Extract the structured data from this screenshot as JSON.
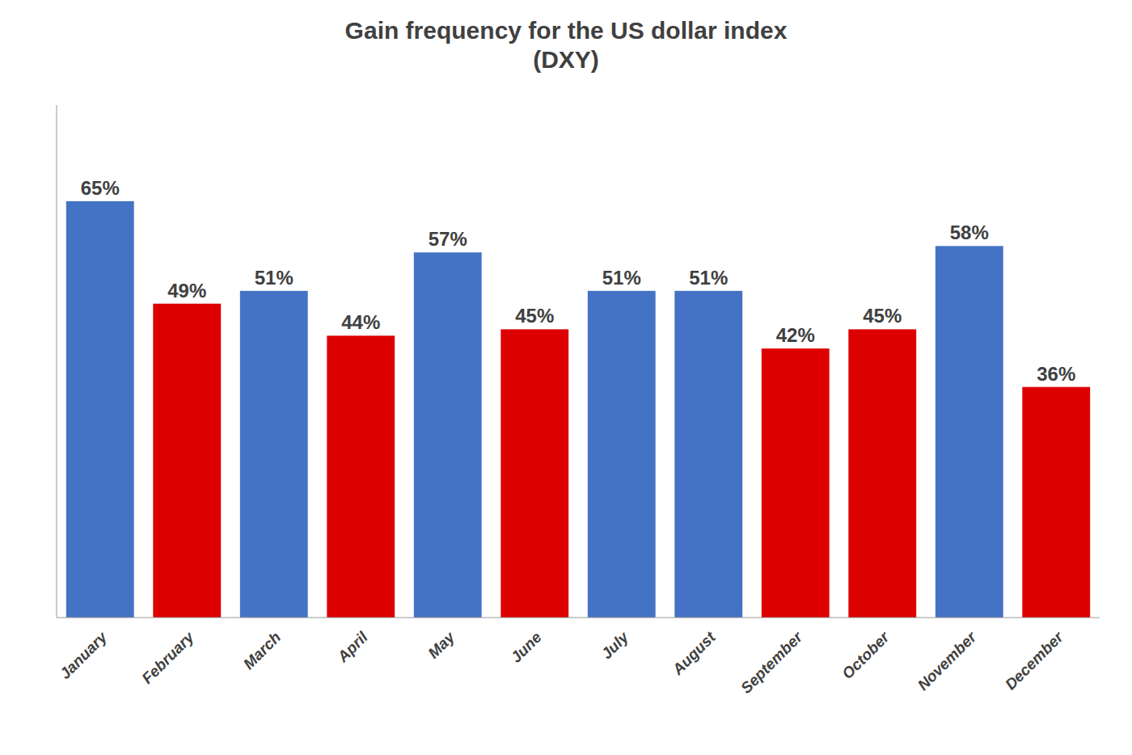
{
  "chart_data": {
    "type": "bar",
    "title": "Gain frequency for the US dollar index\n(DXY)",
    "categories": [
      "January",
      "February",
      "March",
      "April",
      "May",
      "June",
      "July",
      "August",
      "September",
      "October",
      "November",
      "December"
    ],
    "values": [
      65,
      49,
      51,
      44,
      57,
      45,
      51,
      51,
      42,
      45,
      58,
      36
    ],
    "value_labels": [
      "65%",
      "49%",
      "51%",
      "44%",
      "57%",
      "45%",
      "51%",
      "51%",
      "42%",
      "45%",
      "58%",
      "36%"
    ],
    "colors": [
      "#4472C4",
      "#DD0000",
      "#4472C4",
      "#DD0000",
      "#4472C4",
      "#DD0000",
      "#4472C4",
      "#4472C4",
      "#DD0000",
      "#DD0000",
      "#4472C4",
      "#DD0000"
    ],
    "ylim": [
      0,
      80
    ],
    "grid": false,
    "data_labels": true,
    "tick_labels": "x"
  }
}
